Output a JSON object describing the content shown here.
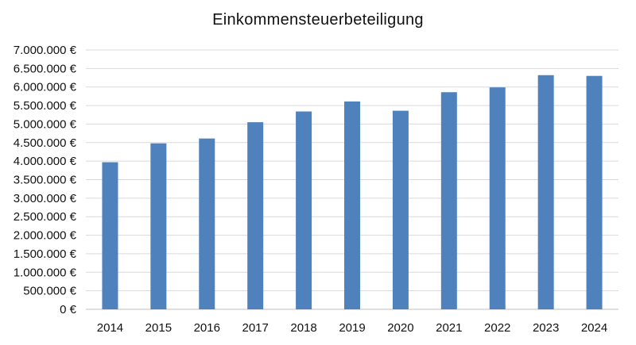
{
  "chart_data": {
    "type": "bar",
    "title": "Einkommensteuerbeteiligung",
    "xlabel": "",
    "ylabel": "",
    "categories": [
      "2014",
      "2015",
      "2016",
      "2017",
      "2018",
      "2019",
      "2020",
      "2021",
      "2022",
      "2023",
      "2024"
    ],
    "values": [
      3970000,
      4480000,
      4610000,
      5050000,
      5340000,
      5610000,
      5360000,
      5860000,
      5990000,
      6320000,
      6300000
    ],
    "ylim": [
      0,
      7000000
    ],
    "yticks": [
      0,
      500000,
      1000000,
      1500000,
      2000000,
      2500000,
      3000000,
      3500000,
      4000000,
      4500000,
      5000000,
      5500000,
      6000000,
      6500000,
      7000000
    ],
    "ytick_labels": [
      "0 €",
      "500.000 €",
      "1.000.000 €",
      "1.500.000 €",
      "2.000.000 €",
      "2.500.000 €",
      "3.000.000 €",
      "3.500.000 €",
      "4.000.000 €",
      "4.500.000 €",
      "5.000.000 €",
      "5.500.000 €",
      "6.000.000 €",
      "6.500.000 €",
      "7.000.000 €"
    ],
    "grid": true,
    "legend": "none",
    "colors": {
      "bar": "#4f81bd",
      "grid": "#d9d9d9",
      "axis": "#bfbfbf"
    }
  }
}
